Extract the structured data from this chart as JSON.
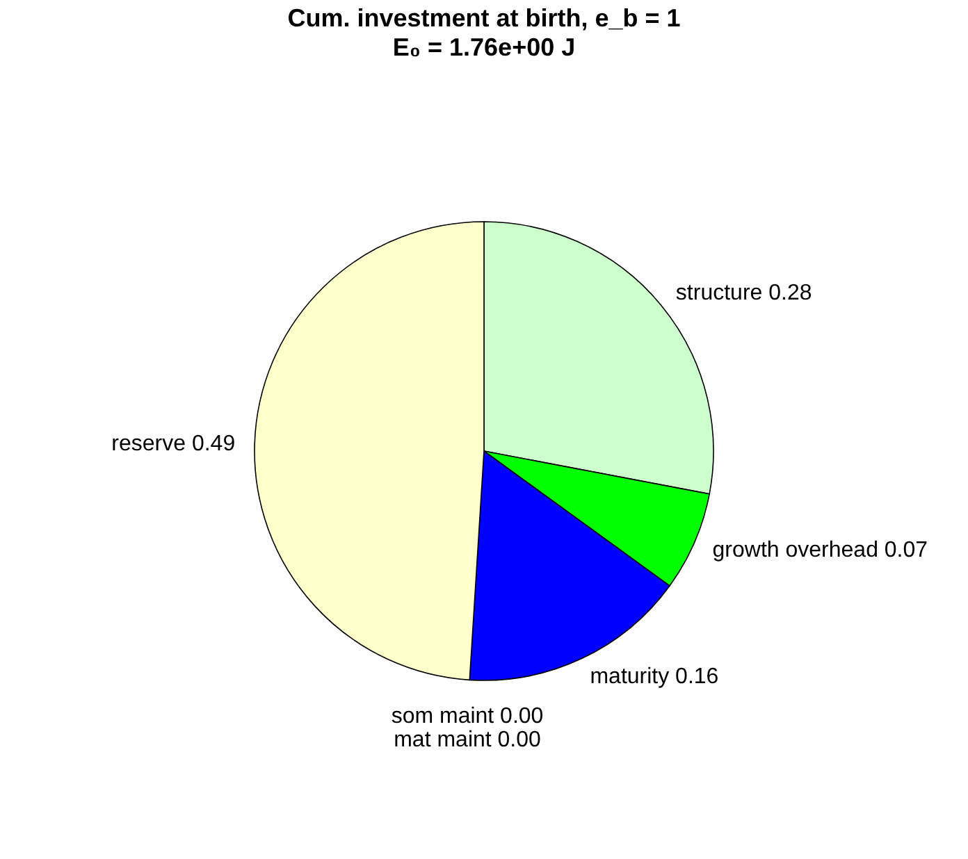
{
  "chart_data": {
    "type": "pie",
    "title": "Cum. investment at birth, e_b = 1",
    "subtitle": "E₀ = 1.76e+00 J",
    "categories": [
      "structure 0.28",
      "growth overhead 0.07",
      "maturity 0.16",
      "som maint 0.00",
      "mat maint 0.00",
      "reserve 0.49"
    ],
    "values": [
      0.28,
      0.07,
      0.16,
      0.0,
      0.0,
      0.49
    ],
    "colors": [
      "#ccffcc",
      "#00ff00",
      "#0000ff",
      "#ff0000",
      "#800000",
      "#ffffcc"
    ]
  }
}
